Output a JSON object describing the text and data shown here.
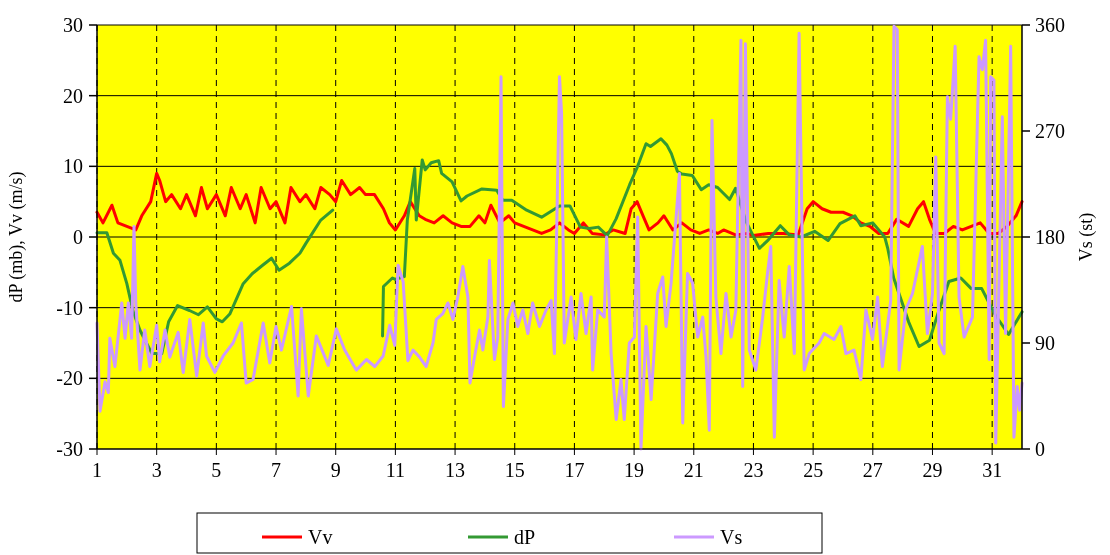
{
  "chart_data": {
    "type": "line",
    "xlabel": null,
    "ylabel": "dP (mb), Vv (m/s)",
    "y2label": "Vs (st)",
    "xlim": [
      1,
      32
    ],
    "xticks": [
      1,
      3,
      5,
      7,
      9,
      11,
      13,
      15,
      17,
      19,
      21,
      23,
      25,
      27,
      29,
      31
    ],
    "ylim": [
      -30,
      30
    ],
    "yticks": [
      -30,
      -20,
      -10,
      0,
      10,
      20,
      30
    ],
    "y2lim": [
      0,
      360
    ],
    "y2ticks": [
      0,
      90,
      180,
      270,
      360
    ],
    "grid": true,
    "legend": "bottom",
    "line_style": "solid",
    "marker": "none",
    "series": [
      {
        "name": "Vv",
        "color": "#ff0000",
        "x": [
          1,
          1.2,
          1.5,
          1.7,
          2,
          2.3,
          2.5,
          2.8,
          3,
          3.1,
          3.3,
          3.5,
          3.8,
          4,
          4.3,
          4.5,
          4.7,
          5,
          5.3,
          5.5,
          5.8,
          6,
          6.3,
          6.5,
          6.8,
          7,
          7.3,
          7.5,
          7.8,
          8,
          8.3,
          8.5,
          8.8,
          9,
          9.2,
          9.5,
          9.8,
          10,
          10.3,
          10.6,
          10.8,
          11,
          11.3,
          11.5,
          11.8,
          12,
          12.3,
          12.6,
          12.9,
          13.2,
          13.5,
          13.8,
          14,
          14.2,
          14.5,
          14.8,
          15,
          15.3,
          15.6,
          15.9,
          16.2,
          16.5,
          16.8,
          17,
          17.3,
          17.6,
          18,
          18.3,
          18.7,
          18.9,
          19.1,
          19.3,
          19.5,
          19.8,
          20,
          20.3,
          20.6,
          20.9,
          21.2,
          21.5,
          21.8,
          22,
          22.4,
          22.8,
          23,
          23.5,
          24,
          24.5,
          24.8,
          25,
          25.3,
          25.6,
          26,
          26.3,
          26.6,
          26.9,
          27.2,
          27.5,
          27.8,
          28.2,
          28.5,
          28.7,
          28.9,
          29.1,
          29.4,
          29.7,
          30,
          30.3,
          30.6,
          30.9,
          31.2,
          31.5,
          31.8,
          32
        ],
        "values": [
          3.5,
          2,
          4.5,
          2,
          1.5,
          1,
          3,
          5,
          9,
          8,
          5,
          6,
          4,
          6,
          3,
          7,
          4,
          6,
          3,
          7,
          4,
          6,
          2,
          7,
          4,
          5,
          2,
          7,
          5,
          6,
          4,
          7,
          6,
          5,
          8,
          6,
          7,
          6,
          6,
          4,
          2,
          1,
          3,
          5,
          3,
          2.5,
          2,
          3,
          2,
          1.5,
          1.5,
          3,
          2,
          4.5,
          2,
          3,
          2,
          1.5,
          1,
          0.5,
          1,
          2,
          1,
          0.5,
          2,
          0.5,
          0.3,
          1,
          0.5,
          4,
          5,
          3,
          1,
          2,
          3,
          1,
          2,
          1,
          0.5,
          1,
          0.5,
          1,
          0.3,
          0.5,
          0.2,
          0.5,
          0.5,
          0.3,
          4,
          5,
          4,
          3.5,
          3.5,
          3,
          2,
          1.5,
          0.5,
          0.5,
          2.5,
          1.5,
          4,
          5,
          2.5,
          0.5,
          0.5,
          1.5,
          1,
          1.5,
          2,
          0.5,
          0.5,
          1.5,
          3,
          5
        ]
      },
      {
        "name": "dP",
        "color": "#339933",
        "x": [
          1,
          1.33,
          1.55,
          1.77,
          2,
          2.2,
          2.44,
          2.84,
          3.17,
          3.4,
          3.7,
          4.1,
          4.4,
          4.7,
          5,
          5.2,
          5.45,
          5.9,
          6.2,
          6.55,
          6.85,
          7.1,
          7.45,
          7.8,
          8,
          8.5,
          8.9,
          10.5,
          10.57,
          10.6,
          10.9,
          11,
          11.3,
          11.4,
          11.65,
          11.7,
          11.9,
          12,
          12.2,
          12.45,
          12.55,
          12.9,
          13.2,
          13.4,
          13.9,
          14.4,
          14.6,
          14.9,
          15.4,
          15.9,
          16.5,
          16.85,
          17.2,
          17.5,
          17.8,
          18.1,
          18.4,
          18.85,
          19.1,
          19.4,
          19.55,
          19.9,
          20.1,
          20.25,
          20.45,
          20.6,
          20.95,
          21.25,
          21.5,
          21.8,
          22.2,
          22.4,
          22.75,
          23.2,
          23.5,
          23.9,
          24.2,
          24.6,
          25.05,
          25.5,
          25.9,
          26.4,
          26.6,
          27,
          27.4,
          27.5,
          27.7,
          28.2,
          28.55,
          28.9,
          29.2,
          29.55,
          29.95,
          30.3,
          30.65,
          31.1,
          31.55,
          32
        ],
        "values": [
          0.6,
          0.6,
          -2.3,
          -3.3,
          -6.6,
          -10.4,
          -13.2,
          -16.5,
          -16.5,
          -12,
          -9.7,
          -10.4,
          -11,
          -9.9,
          -11.6,
          -12,
          -10.9,
          -6.6,
          -5.2,
          -4,
          -3,
          -4.7,
          -3.7,
          -2.3,
          -0.9,
          2.4,
          3.8,
          null,
          -14,
          -7,
          -5.8,
          -6,
          -5.6,
          2.4,
          9.7,
          2.4,
          10.9,
          9.5,
          10.5,
          10.8,
          9,
          7.8,
          5.1,
          5.8,
          6.8,
          6.6,
          5.2,
          5.2,
          3.8,
          2.8,
          4.4,
          4.4,
          1.4,
          1.2,
          1.4,
          0.2,
          2.6,
          7.4,
          9.8,
          13.2,
          12.8,
          13.9,
          13,
          11.8,
          9.3,
          8.9,
          8.7,
          6.7,
          7.4,
          7,
          5.3,
          6.9,
          2.2,
          -1.6,
          -0.4,
          1.6,
          0.3,
          0,
          0.8,
          -0.5,
          1.9,
          3,
          1.6,
          2,
          0,
          -1.6,
          -5.8,
          -12,
          -15.5,
          -14.6,
          -10.6,
          -6.3,
          -5.8,
          -7.3,
          -7.3,
          -11,
          -13.8,
          -10.6
        ]
      },
      {
        "name": "Vs",
        "color": "#cc99ff",
        "axis": "y2",
        "x": [
          1,
          1.1,
          1.27,
          1.38,
          1.43,
          1.6,
          1.83,
          1.94,
          2.05,
          2.16,
          2.24,
          2.3,
          2.44,
          2.6,
          2.77,
          3,
          3.1,
          3.28,
          3.44,
          3.72,
          3.89,
          4.11,
          4.34,
          4.56,
          4.67,
          4.95,
          5.23,
          5.56,
          5.84,
          6,
          6.23,
          6.57,
          6.79,
          7,
          7.18,
          7.52,
          7.74,
          7.85,
          8.08,
          8.35,
          8.75,
          9.02,
          9.3,
          9.69,
          10.03,
          10.31,
          10.59,
          10.81,
          10.98,
          11.09,
          11.26,
          11.42,
          11.59,
          11.81,
          12.03,
          12.26,
          12.37,
          12.59,
          12.76,
          12.93,
          13.09,
          13.26,
          13.43,
          13.5,
          13.65,
          13.82,
          13.93,
          14.1,
          14.15,
          14.32,
          14.43,
          14.54,
          14.62,
          14.77,
          14.94,
          15.1,
          15.27,
          15.44,
          15.6,
          15.83,
          16.05,
          16.22,
          16.33,
          16.5,
          16.57,
          16.66,
          16.89,
          17.05,
          17.22,
          17.39,
          17.56,
          17.61,
          17.78,
          18,
          18.08,
          18.23,
          18.4,
          18.56,
          18.67,
          18.84,
          19.01,
          19.12,
          19.23,
          19.4,
          19.57,
          19.79,
          19.96,
          20.07,
          20.24,
          20.52,
          20.63,
          20.79,
          20.96,
          21.13,
          21.3,
          21.41,
          21.52,
          21.61,
          21.74,
          21.91,
          22.08,
          22.25,
          22.41,
          22.58,
          22.64,
          22.73,
          22.86,
          23.08,
          23.3,
          23.47,
          23.58,
          23.7,
          23.86,
          24.03,
          24.2,
          24.37,
          24.53,
          24.7,
          24.87,
          25.2,
          25.37,
          25.7,
          25.93,
          26.1,
          26.37,
          26.6,
          26.77,
          26.99,
          27.16,
          27.32,
          27.6,
          27.71,
          27.82,
          27.88,
          28.1,
          28.33,
          28.66,
          28.83,
          29,
          29.11,
          29.22,
          29.39,
          29.5,
          29.61,
          29.76,
          29.89,
          30.06,
          30.34,
          30.56,
          30.67,
          30.78,
          30.9,
          30.95,
          31.06,
          31.12,
          31.34,
          31.45,
          31.62,
          31.73,
          31.84,
          31.92,
          32
        ],
        "values": [
          107,
          32,
          57,
          48,
          94,
          70,
          124,
          94,
          124,
          94,
          189,
          124,
          67,
          101,
          70,
          105,
          74,
          101,
          78,
          99,
          65,
          110,
          62,
          107,
          79,
          65,
          79,
          90,
          107,
          56,
          59,
          107,
          73,
          104,
          84,
          121,
          45,
          119,
          45,
          96,
          71,
          102,
          84,
          67,
          76,
          70,
          79,
          105,
          88,
          156,
          142,
          75,
          84,
          78,
          70,
          90,
          110,
          115,
          124,
          110,
          129,
          155,
          129,
          56,
          78,
          101,
          84,
          112,
          160,
          76,
          95,
          316,
          36,
          110,
          124,
          104,
          118,
          98,
          124,
          104,
          118,
          126,
          81,
          316,
          285,
          90,
          129,
          93,
          132,
          98,
          129,
          67,
          118,
          112,
          180,
          81,
          25,
          59,
          25,
          90,
          95,
          197,
          0,
          104,
          42,
          132,
          146,
          104,
          141,
          234,
          22,
          149,
          141,
          95,
          112,
          78,
          16,
          279,
          129,
          81,
          132,
          95,
          118,
          347,
          53,
          344,
          84,
          67,
          110,
          149,
          172,
          10,
          143,
          95,
          155,
          81,
          353,
          67,
          81,
          90,
          98,
          93,
          104,
          81,
          84,
          59,
          118,
          93,
          129,
          70,
          126,
          359,
          356,
          67,
          118,
          132,
          172,
          98,
          132,
          248,
          90,
          81,
          299,
          280,
          342,
          129,
          95,
          112,
          333,
          322,
          347,
          76,
          316,
          313,
          5,
          282,
          98,
          342,
          10,
          53,
          33,
          56
        ]
      }
    ]
  }
}
